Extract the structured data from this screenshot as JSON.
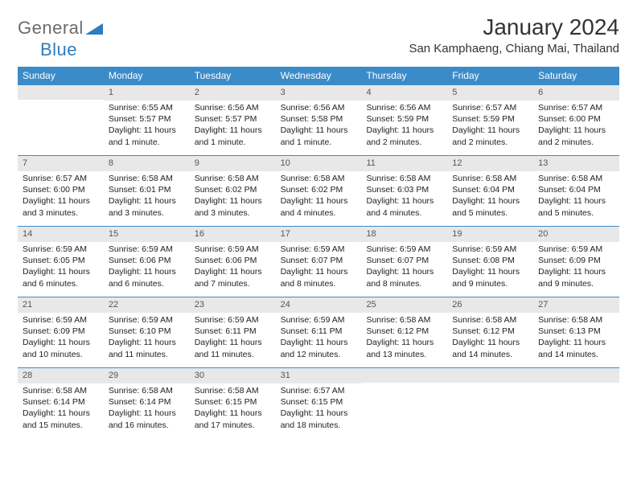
{
  "logo": {
    "gray": "General",
    "blue": "Blue"
  },
  "title": "January 2024",
  "location": "San Kamphaeng, Chiang Mai, Thailand",
  "colors": {
    "header_bg": "#3b8bc9",
    "header_text": "#ffffff",
    "daynum_bg": "#e8e8e8",
    "daynum_text": "#555555",
    "body_text": "#222222",
    "rule": "#3b8bc9",
    "logo_gray": "#6b6b6b",
    "logo_blue": "#2d7dbf"
  },
  "weekdays": [
    "Sunday",
    "Monday",
    "Tuesday",
    "Wednesday",
    "Thursday",
    "Friday",
    "Saturday"
  ],
  "weeks": [
    [
      {
        "n": "",
        "sunrise": "",
        "sunset": "",
        "daylight": ""
      },
      {
        "n": "1",
        "sunrise": "Sunrise: 6:55 AM",
        "sunset": "Sunset: 5:57 PM",
        "daylight": "Daylight: 11 hours and 1 minute."
      },
      {
        "n": "2",
        "sunrise": "Sunrise: 6:56 AM",
        "sunset": "Sunset: 5:57 PM",
        "daylight": "Daylight: 11 hours and 1 minute."
      },
      {
        "n": "3",
        "sunrise": "Sunrise: 6:56 AM",
        "sunset": "Sunset: 5:58 PM",
        "daylight": "Daylight: 11 hours and 1 minute."
      },
      {
        "n": "4",
        "sunrise": "Sunrise: 6:56 AM",
        "sunset": "Sunset: 5:59 PM",
        "daylight": "Daylight: 11 hours and 2 minutes."
      },
      {
        "n": "5",
        "sunrise": "Sunrise: 6:57 AM",
        "sunset": "Sunset: 5:59 PM",
        "daylight": "Daylight: 11 hours and 2 minutes."
      },
      {
        "n": "6",
        "sunrise": "Sunrise: 6:57 AM",
        "sunset": "Sunset: 6:00 PM",
        "daylight": "Daylight: 11 hours and 2 minutes."
      }
    ],
    [
      {
        "n": "7",
        "sunrise": "Sunrise: 6:57 AM",
        "sunset": "Sunset: 6:00 PM",
        "daylight": "Daylight: 11 hours and 3 minutes."
      },
      {
        "n": "8",
        "sunrise": "Sunrise: 6:58 AM",
        "sunset": "Sunset: 6:01 PM",
        "daylight": "Daylight: 11 hours and 3 minutes."
      },
      {
        "n": "9",
        "sunrise": "Sunrise: 6:58 AM",
        "sunset": "Sunset: 6:02 PM",
        "daylight": "Daylight: 11 hours and 3 minutes."
      },
      {
        "n": "10",
        "sunrise": "Sunrise: 6:58 AM",
        "sunset": "Sunset: 6:02 PM",
        "daylight": "Daylight: 11 hours and 4 minutes."
      },
      {
        "n": "11",
        "sunrise": "Sunrise: 6:58 AM",
        "sunset": "Sunset: 6:03 PM",
        "daylight": "Daylight: 11 hours and 4 minutes."
      },
      {
        "n": "12",
        "sunrise": "Sunrise: 6:58 AM",
        "sunset": "Sunset: 6:04 PM",
        "daylight": "Daylight: 11 hours and 5 minutes."
      },
      {
        "n": "13",
        "sunrise": "Sunrise: 6:58 AM",
        "sunset": "Sunset: 6:04 PM",
        "daylight": "Daylight: 11 hours and 5 minutes."
      }
    ],
    [
      {
        "n": "14",
        "sunrise": "Sunrise: 6:59 AM",
        "sunset": "Sunset: 6:05 PM",
        "daylight": "Daylight: 11 hours and 6 minutes."
      },
      {
        "n": "15",
        "sunrise": "Sunrise: 6:59 AM",
        "sunset": "Sunset: 6:06 PM",
        "daylight": "Daylight: 11 hours and 6 minutes."
      },
      {
        "n": "16",
        "sunrise": "Sunrise: 6:59 AM",
        "sunset": "Sunset: 6:06 PM",
        "daylight": "Daylight: 11 hours and 7 minutes."
      },
      {
        "n": "17",
        "sunrise": "Sunrise: 6:59 AM",
        "sunset": "Sunset: 6:07 PM",
        "daylight": "Daylight: 11 hours and 8 minutes."
      },
      {
        "n": "18",
        "sunrise": "Sunrise: 6:59 AM",
        "sunset": "Sunset: 6:07 PM",
        "daylight": "Daylight: 11 hours and 8 minutes."
      },
      {
        "n": "19",
        "sunrise": "Sunrise: 6:59 AM",
        "sunset": "Sunset: 6:08 PM",
        "daylight": "Daylight: 11 hours and 9 minutes."
      },
      {
        "n": "20",
        "sunrise": "Sunrise: 6:59 AM",
        "sunset": "Sunset: 6:09 PM",
        "daylight": "Daylight: 11 hours and 9 minutes."
      }
    ],
    [
      {
        "n": "21",
        "sunrise": "Sunrise: 6:59 AM",
        "sunset": "Sunset: 6:09 PM",
        "daylight": "Daylight: 11 hours and 10 minutes."
      },
      {
        "n": "22",
        "sunrise": "Sunrise: 6:59 AM",
        "sunset": "Sunset: 6:10 PM",
        "daylight": "Daylight: 11 hours and 11 minutes."
      },
      {
        "n": "23",
        "sunrise": "Sunrise: 6:59 AM",
        "sunset": "Sunset: 6:11 PM",
        "daylight": "Daylight: 11 hours and 11 minutes."
      },
      {
        "n": "24",
        "sunrise": "Sunrise: 6:59 AM",
        "sunset": "Sunset: 6:11 PM",
        "daylight": "Daylight: 11 hours and 12 minutes."
      },
      {
        "n": "25",
        "sunrise": "Sunrise: 6:58 AM",
        "sunset": "Sunset: 6:12 PM",
        "daylight": "Daylight: 11 hours and 13 minutes."
      },
      {
        "n": "26",
        "sunrise": "Sunrise: 6:58 AM",
        "sunset": "Sunset: 6:12 PM",
        "daylight": "Daylight: 11 hours and 14 minutes."
      },
      {
        "n": "27",
        "sunrise": "Sunrise: 6:58 AM",
        "sunset": "Sunset: 6:13 PM",
        "daylight": "Daylight: 11 hours and 14 minutes."
      }
    ],
    [
      {
        "n": "28",
        "sunrise": "Sunrise: 6:58 AM",
        "sunset": "Sunset: 6:14 PM",
        "daylight": "Daylight: 11 hours and 15 minutes."
      },
      {
        "n": "29",
        "sunrise": "Sunrise: 6:58 AM",
        "sunset": "Sunset: 6:14 PM",
        "daylight": "Daylight: 11 hours and 16 minutes."
      },
      {
        "n": "30",
        "sunrise": "Sunrise: 6:58 AM",
        "sunset": "Sunset: 6:15 PM",
        "daylight": "Daylight: 11 hours and 17 minutes."
      },
      {
        "n": "31",
        "sunrise": "Sunrise: 6:57 AM",
        "sunset": "Sunset: 6:15 PM",
        "daylight": "Daylight: 11 hours and 18 minutes."
      },
      {
        "n": "",
        "sunrise": "",
        "sunset": "",
        "daylight": ""
      },
      {
        "n": "",
        "sunrise": "",
        "sunset": "",
        "daylight": ""
      },
      {
        "n": "",
        "sunrise": "",
        "sunset": "",
        "daylight": ""
      }
    ]
  ]
}
